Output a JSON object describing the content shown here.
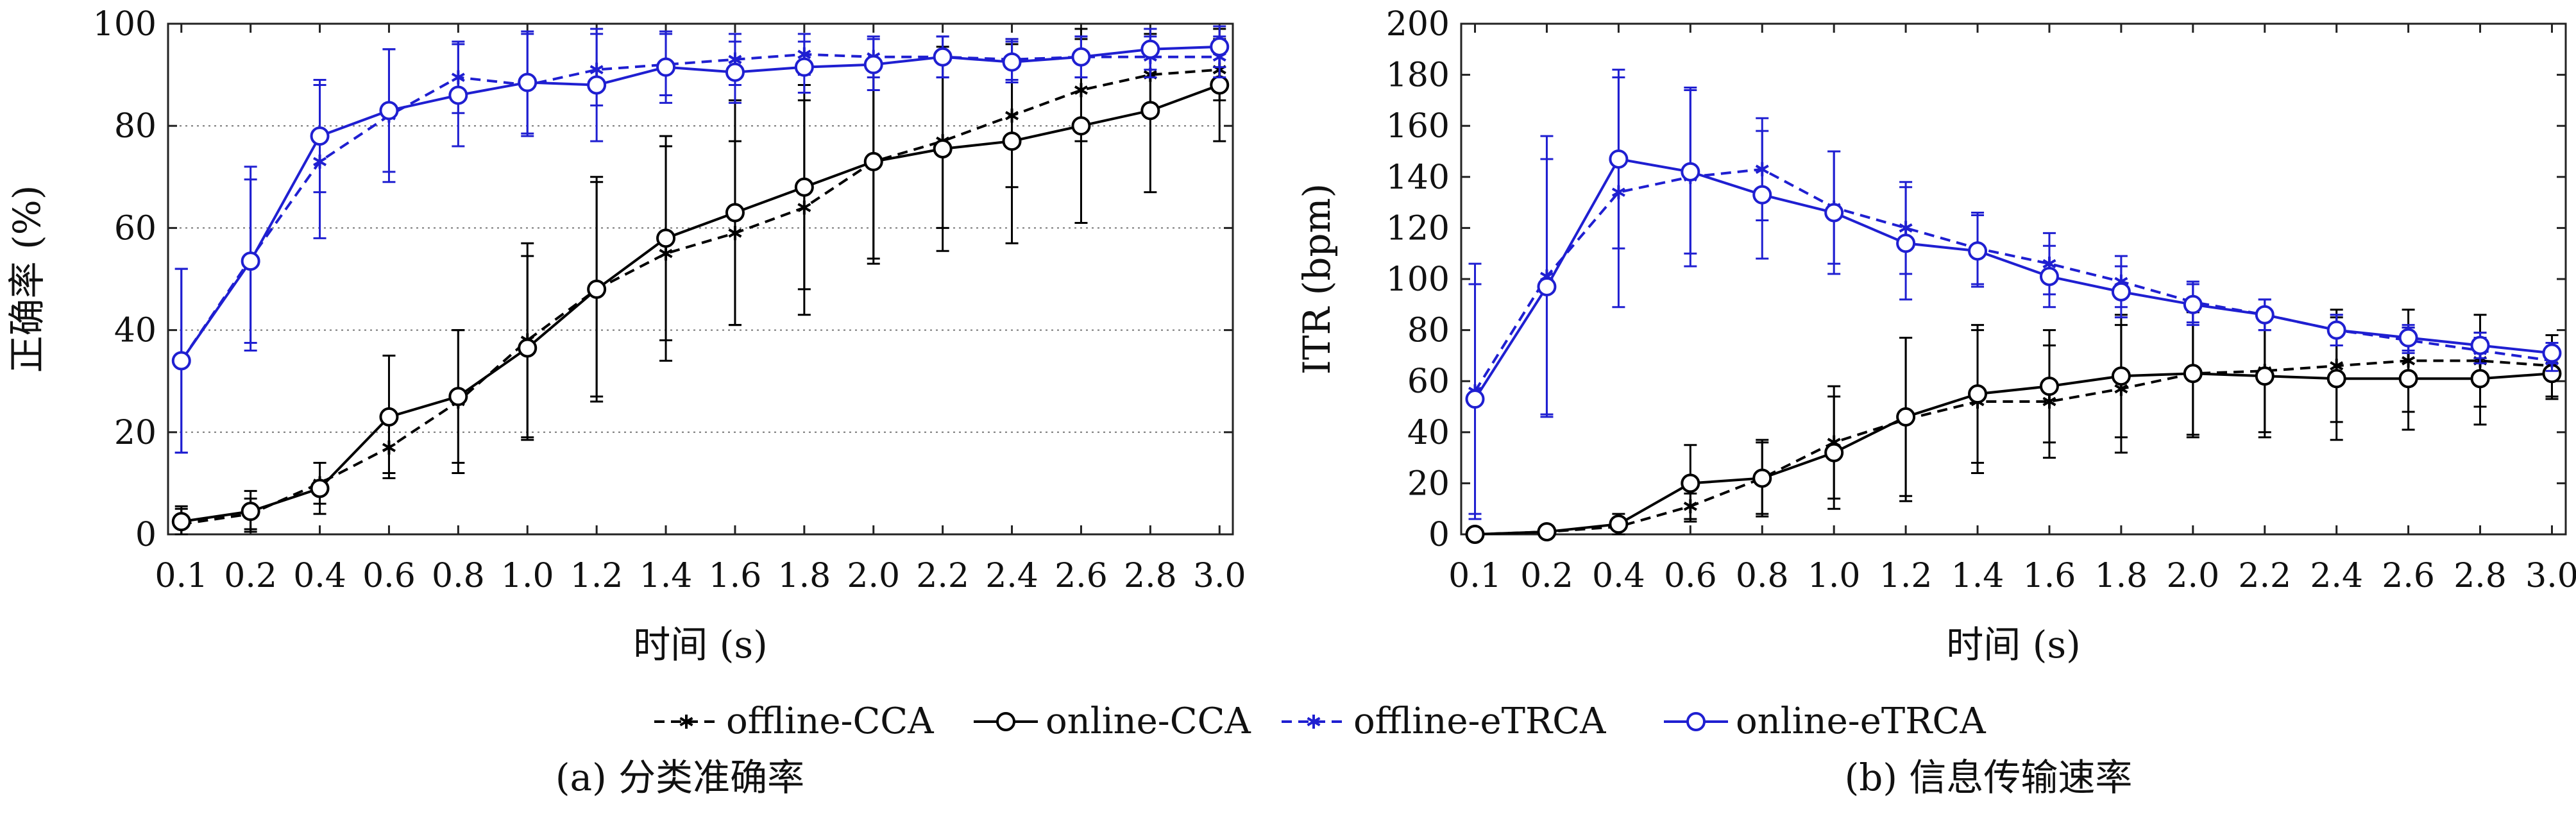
{
  "chart_data": [
    {
      "type": "line",
      "caption": "(a) 分类准确率",
      "xlabel": "时间 (s)",
      "ylabel": "正确率 (%)",
      "categories": [
        "0.1",
        "0.2",
        "0.4",
        "0.6",
        "0.8",
        "1.0",
        "1.2",
        "1.4",
        "1.6",
        "1.8",
        "2.0",
        "2.2",
        "2.4",
        "2.6",
        "2.8",
        "3.0"
      ],
      "ylim": [
        0,
        100
      ],
      "yticks": [
        "0",
        "20",
        "40",
        "60",
        "80",
        "100"
      ],
      "grid": "horizontal-dotted",
      "series": [
        {
          "name": "offline-CCA",
          "color": "#000000",
          "style": "dashed",
          "marker": "star",
          "values": [
            2,
            4,
            10,
            17,
            26,
            38,
            48,
            55,
            59,
            64,
            73,
            77,
            82,
            87,
            90,
            91
          ],
          "errors": [
            3,
            3,
            4,
            5,
            14,
            19,
            21,
            21,
            18,
            21,
            19,
            17,
            14,
            10,
            8,
            6
          ]
        },
        {
          "name": "online-CCA",
          "color": "#000000",
          "style": "solid",
          "marker": "circle",
          "values": [
            2.5,
            4.5,
            9,
            23,
            27,
            36.5,
            48,
            58,
            63,
            68,
            73,
            75.5,
            77,
            80,
            83,
            88
          ],
          "errors": [
            3,
            4,
            5,
            12,
            13,
            18,
            22,
            20,
            22,
            20,
            20,
            20,
            20,
            19,
            16,
            11
          ]
        },
        {
          "name": "offline-eTRCA",
          "color": "#1f1fd1",
          "style": "dashed",
          "marker": "star",
          "values": [
            34,
            54,
            73,
            82,
            89.5,
            88,
            91,
            92,
            93,
            94,
            93.5,
            93.5,
            93,
            93.5,
            93.5,
            93.5
          ],
          "errors": [
            18,
            18,
            15,
            13,
            7,
            10,
            7,
            6,
            5,
            4,
            4,
            4,
            4,
            4,
            4,
            4
          ]
        },
        {
          "name": "online-eTRCA",
          "color": "#1f1fd1",
          "style": "solid",
          "marker": "circle",
          "values": [
            34,
            53.5,
            78,
            83,
            86,
            88.5,
            88,
            91.5,
            90.5,
            91.5,
            92,
            93.5,
            92.5,
            93.5,
            95,
            95.5
          ],
          "errors": [
            18,
            16,
            11,
            12,
            10,
            10,
            11,
            7,
            6,
            5,
            5,
            4,
            4,
            4,
            4,
            4
          ]
        }
      ]
    },
    {
      "type": "line",
      "caption": "(b) 信息传输速率",
      "xlabel": "时间 (s)",
      "ylabel": "ITR (bpm)",
      "categories": [
        "0.1",
        "0.2",
        "0.4",
        "0.6",
        "0.8",
        "1.0",
        "1.2",
        "1.4",
        "1.6",
        "1.8",
        "2.0",
        "2.2",
        "2.4",
        "2.6",
        "2.8",
        "3.0"
      ],
      "ylim": [
        0,
        200
      ],
      "yticks": [
        "0",
        "20",
        "40",
        "60",
        "80",
        "100",
        "120",
        "140",
        "160",
        "180",
        "200"
      ],
      "grid": "none",
      "series": [
        {
          "name": "offline-CCA",
          "color": "#000000",
          "style": "dashed",
          "marker": "star",
          "values": [
            0,
            1,
            3,
            11,
            22,
            36,
            45,
            52,
            52,
            57,
            63,
            64,
            66,
            68,
            68,
            66
          ],
          "errors": [
            1,
            2,
            3,
            5,
            14,
            22,
            32,
            28,
            22,
            25,
            25,
            24,
            22,
            20,
            18,
            12
          ]
        },
        {
          "name": "online-CCA",
          "color": "#000000",
          "style": "solid",
          "marker": "circle",
          "values": [
            0,
            1,
            4,
            20,
            22,
            32,
            46,
            55,
            58,
            62,
            63,
            62,
            61,
            61,
            61,
            63
          ],
          "errors": [
            1,
            2,
            4,
            15,
            15,
            22,
            31,
            27,
            22,
            24,
            24,
            24,
            24,
            20,
            18,
            10
          ]
        },
        {
          "name": "offline-eTRCA",
          "color": "#1f1fd1",
          "style": "dashed",
          "marker": "star",
          "values": [
            56,
            101,
            134,
            140,
            143,
            128,
            120,
            112,
            106,
            99,
            91,
            86,
            80,
            76,
            72,
            68
          ],
          "errors": [
            50,
            55,
            45,
            35,
            20,
            22,
            18,
            14,
            12,
            10,
            8,
            6,
            6,
            5,
            5,
            4
          ]
        },
        {
          "name": "online-eTRCA",
          "color": "#1f1fd1",
          "style": "solid",
          "marker": "circle",
          "values": [
            53,
            97,
            147,
            142,
            133,
            126,
            114,
            111,
            101,
            95,
            90,
            86,
            80,
            77,
            74,
            71
          ],
          "errors": [
            45,
            50,
            35,
            32,
            25,
            24,
            22,
            14,
            12,
            10,
            8,
            6,
            6,
            5,
            5,
            4
          ]
        }
      ]
    }
  ],
  "legend": [
    {
      "label": "offline-CCA",
      "color": "#000000",
      "style": "dashed",
      "marker": "star"
    },
    {
      "label": "online-CCA",
      "color": "#000000",
      "style": "solid",
      "marker": "circle"
    },
    {
      "label": "offline-eTRCA",
      "color": "#1f1fd1",
      "style": "dashed",
      "marker": "star"
    },
    {
      "label": "online-eTRCA",
      "color": "#1f1fd1",
      "style": "solid",
      "marker": "circle"
    }
  ]
}
